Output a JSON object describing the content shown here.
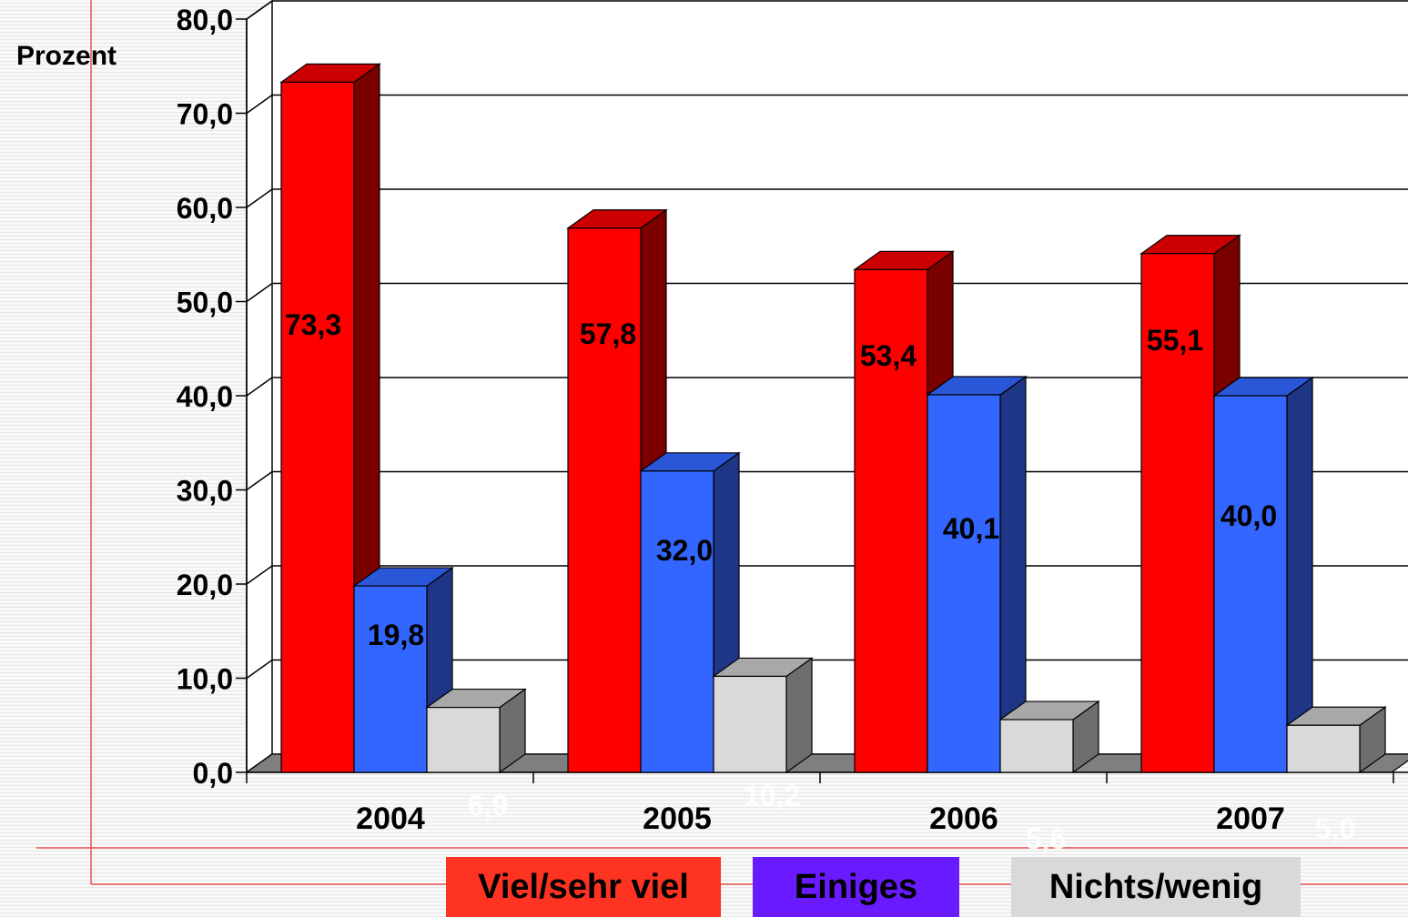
{
  "chart_data": {
    "type": "bar",
    "ylabel": "Prozent",
    "ylim": [
      0,
      80
    ],
    "ytick_step": 10,
    "ytick_labels": [
      "0,0",
      "10,0",
      "20,0",
      "30,0",
      "40,0",
      "50,0",
      "60,0",
      "70,0",
      "80,0"
    ],
    "categories": [
      "2004",
      "2005",
      "2006",
      "2007"
    ],
    "series": [
      {
        "name": "Viel/sehr viel",
        "values": [
          73.3,
          57.8,
          53.4,
          55.1
        ],
        "value_labels": [
          "73,3",
          "57,8",
          "53,4",
          "55,1"
        ],
        "color_front": "#ff0000",
        "color_top": "#cc0000",
        "color_side": "#7a0000"
      },
      {
        "name": "Einiges",
        "values": [
          19.8,
          32.0,
          40.1,
          40.0
        ],
        "value_labels": [
          "19,8",
          "32,0",
          "40,1",
          "40,0"
        ],
        "color_front": "#3366ff",
        "color_top": "#2a56d8",
        "color_side": "#1f3585"
      },
      {
        "name": "Nichts/wenig",
        "values": [
          6.9,
          10.2,
          5.6,
          5.0
        ],
        "value_labels": [
          "6,9",
          "10,2",
          "5,6",
          "5,0"
        ],
        "color_front": "#d9d9d9",
        "color_top": "#a8a8a8",
        "color_side": "#6e6e6e"
      }
    ],
    "legend_position": "bottom",
    "grid": true
  },
  "legend": {
    "items": [
      {
        "label": "Viel/sehr viel",
        "color": "#ff3322"
      },
      {
        "label": "Einiges",
        "color": "#6a1aff"
      },
      {
        "label": "Nichts/wenig",
        "color": "#d9d9d9"
      }
    ]
  }
}
